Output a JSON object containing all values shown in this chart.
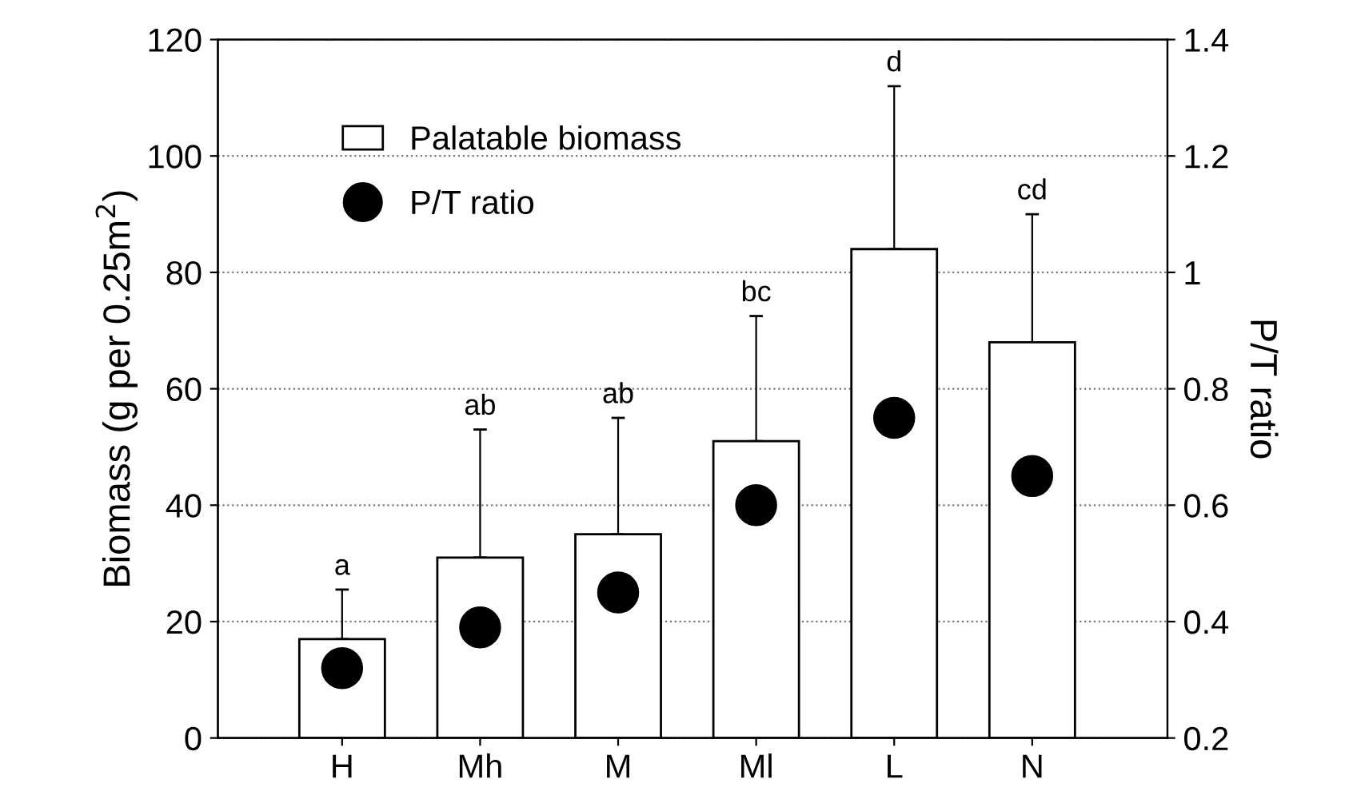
{
  "chart_data": {
    "type": "bar",
    "ylabel": "Biomass (g per 0.25m$^{2}$)",
    "y2label": "P/T ratio",
    "categories": [
      "H",
      "Mh",
      "M",
      "Ml",
      "L",
      "N"
    ],
    "series": [
      {
        "name": "Palatable biomass",
        "color": "#ffffff",
        "values": [
          17,
          31,
          35,
          51,
          84,
          68
        ],
        "errors": [
          [
            17,
            25.5
          ],
          [
            31,
            53
          ],
          [
            35,
            55
          ],
          [
            51,
            72.5
          ],
          [
            84,
            112
          ],
          [
            68,
            90
          ]
        ]
      },
      {
        "name": "P/T ratio",
        "type": "scatter",
        "axis": "y2",
        "color": "#000000",
        "marker": "circle",
        "values": [
          0.32,
          0.39,
          0.45,
          0.6,
          0.75,
          0.65
        ]
      }
    ],
    "ylim": [
      0,
      120
    ],
    "yticks": [
      0,
      20,
      40,
      60,
      80,
      100,
      120
    ],
    "y2lim": [
      0.2,
      1.4
    ],
    "y2ticks": [
      0.2,
      0.4,
      0.6,
      0.8,
      1,
      1.2,
      1.4
    ],
    "annotations": [
      {
        "text": "a",
        "x": "H",
        "y": 25.5
      },
      {
        "text": "ab",
        "x": "Mh",
        "y": 53
      },
      {
        "text": "ab",
        "x": "M",
        "y": 55
      },
      {
        "text": "bc",
        "x": "Ml",
        "y": 72.5
      },
      {
        "text": "d",
        "x": "L",
        "y": 112
      },
      {
        "text": "cd",
        "x": "N",
        "y": 90
      }
    ],
    "grid": "y",
    "legend": "top left"
  }
}
